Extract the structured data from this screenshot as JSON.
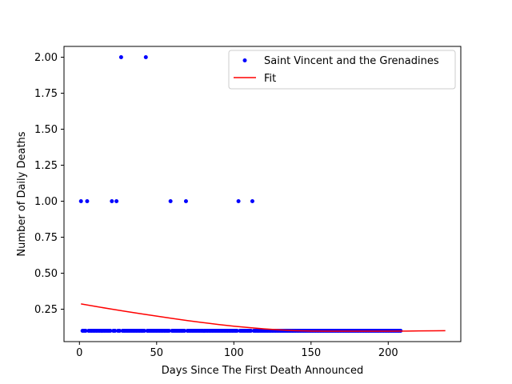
{
  "chart_data": {
    "type": "scatter",
    "xlabel": "Days Since The First Death Announced",
    "ylabel": "Number of Daily Deaths",
    "xlim": [
      -10,
      247
    ],
    "ylim": [
      0.025,
      2.075
    ],
    "xticks": [
      0,
      50,
      100,
      150,
      200
    ],
    "yticks": [
      0.25,
      0.5,
      0.75,
      1.0,
      1.25,
      1.5,
      1.75,
      2.0
    ],
    "legend_position": "upper right",
    "series": [
      {
        "name": "Saint Vincent and the Grenadines",
        "kind": "points",
        "color": "#0000ff",
        "special_points": [
          {
            "x": 1,
            "y": 1
          },
          {
            "x": 5,
            "y": 1
          },
          {
            "x": 21,
            "y": 1
          },
          {
            "x": 24,
            "y": 1
          },
          {
            "x": 27,
            "y": 2
          },
          {
            "x": 43,
            "y": 2
          },
          {
            "x": 59,
            "y": 1
          },
          {
            "x": 69,
            "y": 1
          },
          {
            "x": 103,
            "y": 1
          },
          {
            "x": 112,
            "y": 1
          }
        ],
        "baseline": {
          "y": 0.1,
          "x_start": 1,
          "x_end": 208
        }
      },
      {
        "name": "Fit",
        "kind": "line",
        "color": "#ff0000",
        "x": [
          1,
          10,
          20,
          30,
          40,
          50,
          60,
          70,
          80,
          90,
          100,
          110,
          120,
          130,
          140,
          150,
          160,
          170,
          180,
          190,
          200,
          210,
          220,
          230,
          237
        ],
        "y": [
          0.287,
          0.27,
          0.252,
          0.235,
          0.218,
          0.202,
          0.186,
          0.171,
          0.157,
          0.144,
          0.132,
          0.122,
          0.113,
          0.106,
          0.101,
          0.098,
          0.097,
          0.097,
          0.097,
          0.097,
          0.097,
          0.098,
          0.099,
          0.1,
          0.101
        ]
      }
    ]
  }
}
